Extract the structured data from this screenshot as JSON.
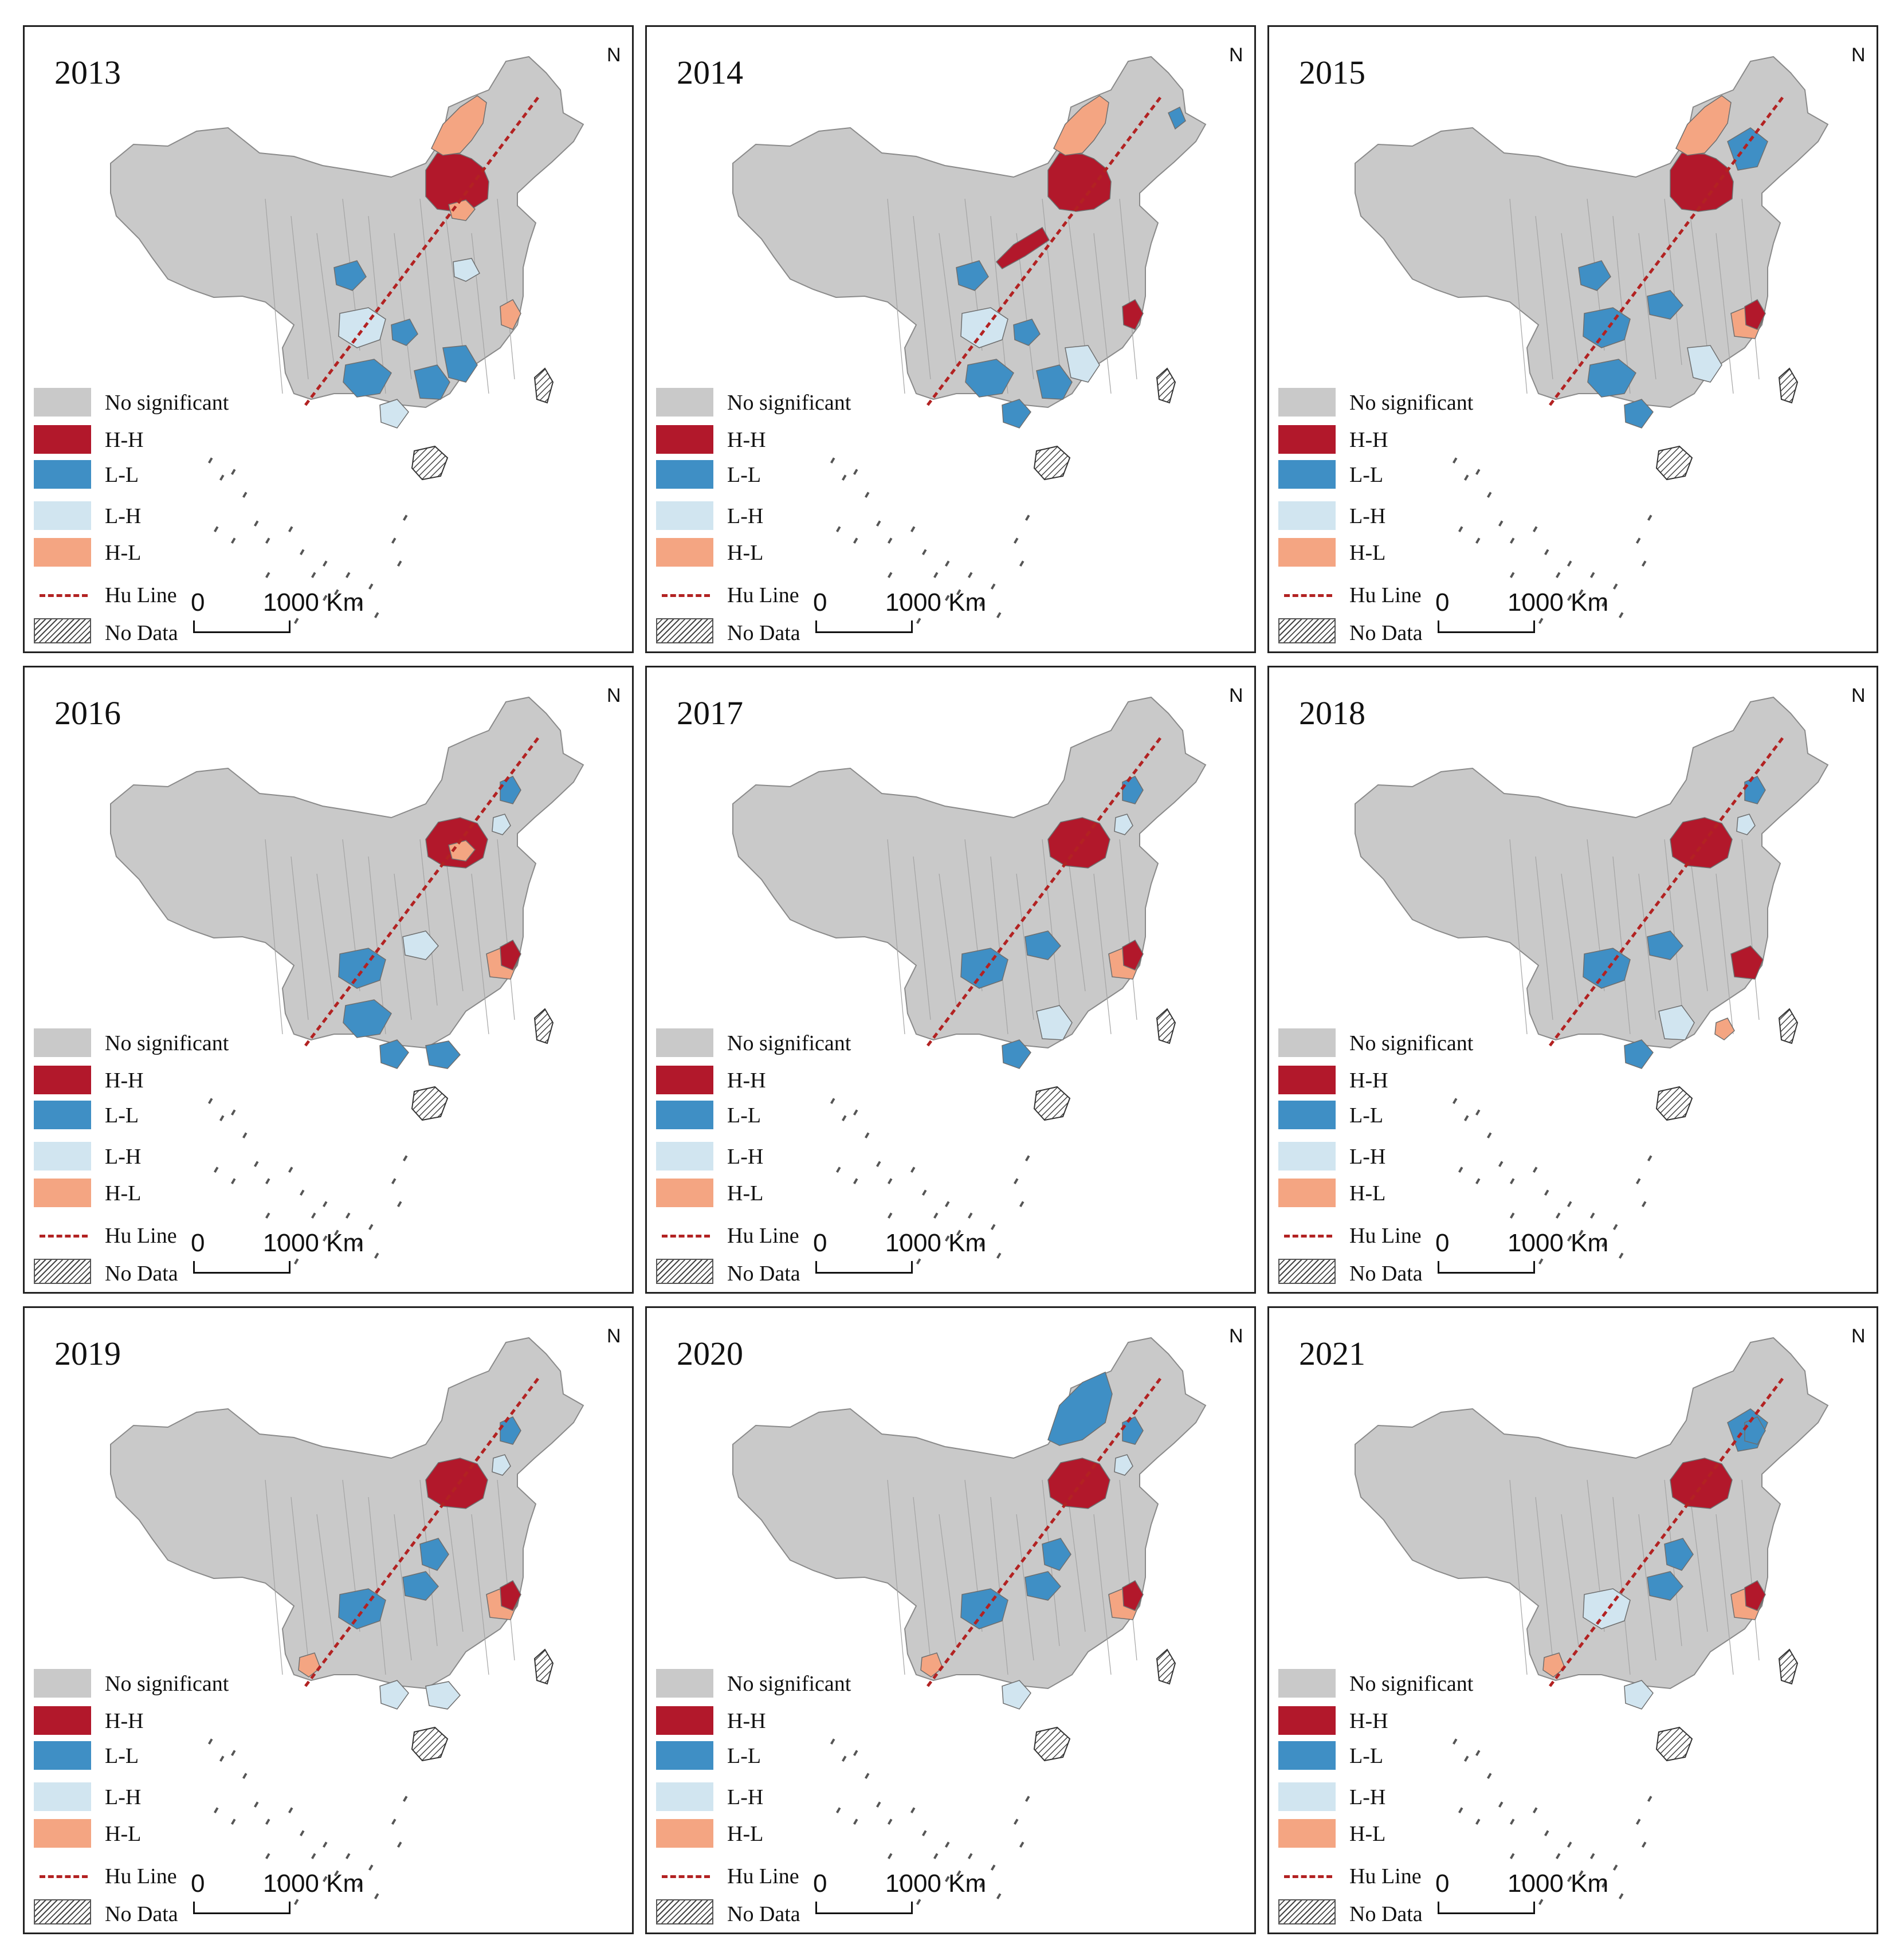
{
  "colors": {
    "no_significant": "#c9c9c9",
    "hh": "#b2182b",
    "ll": "#3f8fc5",
    "lh": "#d1e5f0",
    "hl": "#f4a582",
    "hu_line": "#b22222",
    "boundary": "#8a8a8a"
  },
  "legend": {
    "items": [
      {
        "key": "no_significant",
        "label": "No significant",
        "kind": "fill"
      },
      {
        "key": "hh",
        "label": "H-H",
        "kind": "fill"
      },
      {
        "key": "ll",
        "label": "L-L",
        "kind": "fill"
      },
      {
        "key": "lh",
        "label": "L-H",
        "kind": "fill"
      },
      {
        "key": "hl",
        "label": "H-L",
        "kind": "fill"
      },
      {
        "key": "hu_line",
        "label": "Hu Line",
        "kind": "line"
      },
      {
        "key": "no_data",
        "label": "No Data",
        "kind": "hatch"
      }
    ]
  },
  "scale": {
    "zero": "0",
    "max": "1000",
    "unit": "Km",
    "max_label": "1000  Km"
  },
  "north": {
    "label": "N"
  },
  "panels": [
    {
      "year": "2013",
      "clusters": [
        {
          "region": "hebei-nmg",
          "type": "hh"
        },
        {
          "region": "nmg-north",
          "type": "hl"
        },
        {
          "region": "tianjin-south",
          "type": "hl"
        },
        {
          "region": "shaanxi-south",
          "type": "ll"
        },
        {
          "region": "sichuan-east",
          "type": "lh"
        },
        {
          "region": "chongqing",
          "type": "ll"
        },
        {
          "region": "guizhou",
          "type": "ll"
        },
        {
          "region": "hunan",
          "type": "ll"
        },
        {
          "region": "jiangxi",
          "type": "ll"
        },
        {
          "region": "guangxi",
          "type": "lh"
        },
        {
          "region": "shandong",
          "type": "lh"
        },
        {
          "region": "shanghai",
          "type": "hl"
        }
      ]
    },
    {
      "year": "2014",
      "clusters": [
        {
          "region": "hebei-nmg",
          "type": "hh"
        },
        {
          "region": "nmg-north",
          "type": "hl"
        },
        {
          "region": "ningxia-hh",
          "type": "hh"
        },
        {
          "region": "shaanxi-south",
          "type": "ll"
        },
        {
          "region": "sichuan-east",
          "type": "lh"
        },
        {
          "region": "chongqing",
          "type": "ll"
        },
        {
          "region": "guizhou",
          "type": "ll"
        },
        {
          "region": "hunan",
          "type": "ll"
        },
        {
          "region": "jiangxi",
          "type": "lh"
        },
        {
          "region": "heilongjiang-east",
          "type": "ll"
        },
        {
          "region": "shanghai",
          "type": "hh"
        },
        {
          "region": "guangxi",
          "type": "ll"
        }
      ]
    },
    {
      "year": "2015",
      "clusters": [
        {
          "region": "hebei-nmg",
          "type": "hh"
        },
        {
          "region": "nmg-north",
          "type": "hl"
        },
        {
          "region": "shaanxi-south",
          "type": "ll"
        },
        {
          "region": "sichuan-east",
          "type": "ll"
        },
        {
          "region": "hubei",
          "type": "ll"
        },
        {
          "region": "guizhou",
          "type": "ll"
        },
        {
          "region": "guangxi",
          "type": "ll"
        },
        {
          "region": "jiangxi",
          "type": "lh"
        },
        {
          "region": "zhejiang",
          "type": "hl"
        },
        {
          "region": "shanghai",
          "type": "hh"
        },
        {
          "region": "heilongjiang-mid",
          "type": "ll"
        }
      ]
    },
    {
      "year": "2016",
      "clusters": [
        {
          "region": "beijing-hebei",
          "type": "hh"
        },
        {
          "region": "tianjin-south",
          "type": "hl"
        },
        {
          "region": "jilin",
          "type": "ll"
        },
        {
          "region": "liaoning",
          "type": "lh"
        },
        {
          "region": "sichuan-east",
          "type": "ll"
        },
        {
          "region": "guizhou",
          "type": "ll"
        },
        {
          "region": "guangxi",
          "type": "ll"
        },
        {
          "region": "guangdong",
          "type": "ll"
        },
        {
          "region": "hubei",
          "type": "lh"
        },
        {
          "region": "zhejiang",
          "type": "hl"
        },
        {
          "region": "shanghai",
          "type": "hh"
        }
      ]
    },
    {
      "year": "2017",
      "clusters": [
        {
          "region": "beijing-hebei",
          "type": "hh"
        },
        {
          "region": "jilin",
          "type": "ll"
        },
        {
          "region": "liaoning",
          "type": "lh"
        },
        {
          "region": "sichuan-east",
          "type": "ll"
        },
        {
          "region": "hubei",
          "type": "ll"
        },
        {
          "region": "guangxi",
          "type": "ll"
        },
        {
          "region": "hunan",
          "type": "lh"
        },
        {
          "region": "zhejiang",
          "type": "hl"
        },
        {
          "region": "shanghai",
          "type": "hh"
        }
      ]
    },
    {
      "year": "2018",
      "clusters": [
        {
          "region": "beijing-hebei",
          "type": "hh"
        },
        {
          "region": "jilin",
          "type": "ll"
        },
        {
          "region": "liaoning",
          "type": "lh"
        },
        {
          "region": "sichuan-east",
          "type": "ll"
        },
        {
          "region": "hubei",
          "type": "ll"
        },
        {
          "region": "guangxi",
          "type": "ll"
        },
        {
          "region": "hunan",
          "type": "lh"
        },
        {
          "region": "zhejiang",
          "type": "hh"
        },
        {
          "region": "fujian",
          "type": "hl"
        }
      ]
    },
    {
      "year": "2019",
      "clusters": [
        {
          "region": "beijing-hebei",
          "type": "hh"
        },
        {
          "region": "jilin",
          "type": "ll"
        },
        {
          "region": "liaoning",
          "type": "lh"
        },
        {
          "region": "henan",
          "type": "ll"
        },
        {
          "region": "sichuan-east",
          "type": "ll"
        },
        {
          "region": "hubei",
          "type": "ll"
        },
        {
          "region": "guangxi",
          "type": "lh"
        },
        {
          "region": "guangdong",
          "type": "lh"
        },
        {
          "region": "zhejiang",
          "type": "hl"
        },
        {
          "region": "shanghai",
          "type": "hh"
        },
        {
          "region": "yunnan-sw",
          "type": "hl"
        }
      ]
    },
    {
      "year": "2020",
      "clusters": [
        {
          "region": "beijing-hebei",
          "type": "hh"
        },
        {
          "region": "nmg-northeast",
          "type": "ll"
        },
        {
          "region": "jilin",
          "type": "ll"
        },
        {
          "region": "liaoning",
          "type": "lh"
        },
        {
          "region": "henan",
          "type": "ll"
        },
        {
          "region": "sichuan-east",
          "type": "ll"
        },
        {
          "region": "hubei",
          "type": "ll"
        },
        {
          "region": "guangxi",
          "type": "lh"
        },
        {
          "region": "zhejiang",
          "type": "hl"
        },
        {
          "region": "shanghai",
          "type": "hh"
        },
        {
          "region": "yunnan-sw",
          "type": "hl"
        }
      ]
    },
    {
      "year": "2021",
      "clusters": [
        {
          "region": "beijing-hebei",
          "type": "hh"
        },
        {
          "region": "heilongjiang-mid",
          "type": "ll"
        },
        {
          "region": "jilin",
          "type": "ll"
        },
        {
          "region": "henan",
          "type": "ll"
        },
        {
          "region": "sichuan-east",
          "type": "lh"
        },
        {
          "region": "hubei",
          "type": "ll"
        },
        {
          "region": "guangxi",
          "type": "lh"
        },
        {
          "region": "zhejiang",
          "type": "hl"
        },
        {
          "region": "shanghai",
          "type": "hh"
        },
        {
          "region": "yunnan-sw",
          "type": "hl"
        }
      ]
    }
  ]
}
